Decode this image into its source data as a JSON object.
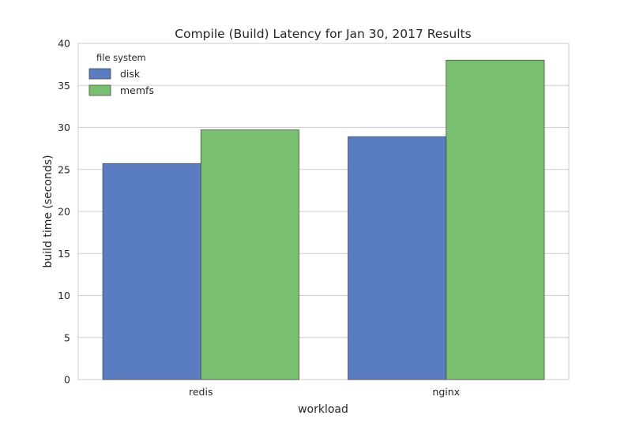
{
  "chart_data": {
    "type": "bar",
    "title": "Compile (Build) Latency for Jan 30, 2017 Results",
    "xlabel": "workload",
    "ylabel": "build time (seconds)",
    "categories": [
      "redis",
      "nginx"
    ],
    "series": [
      {
        "name": "disk",
        "values": [
          25.7,
          28.9
        ],
        "color": "#5a7dc2"
      },
      {
        "name": "memfs",
        "values": [
          29.7,
          38.0
        ],
        "color": "#78c070"
      }
    ],
    "ylim": [
      0,
      40
    ],
    "yticks": [
      "0",
      "5",
      "10",
      "15",
      "20",
      "25",
      "30",
      "35",
      "40"
    ],
    "grid": true,
    "legend": {
      "title": "file system",
      "placement": "top-left"
    }
  }
}
